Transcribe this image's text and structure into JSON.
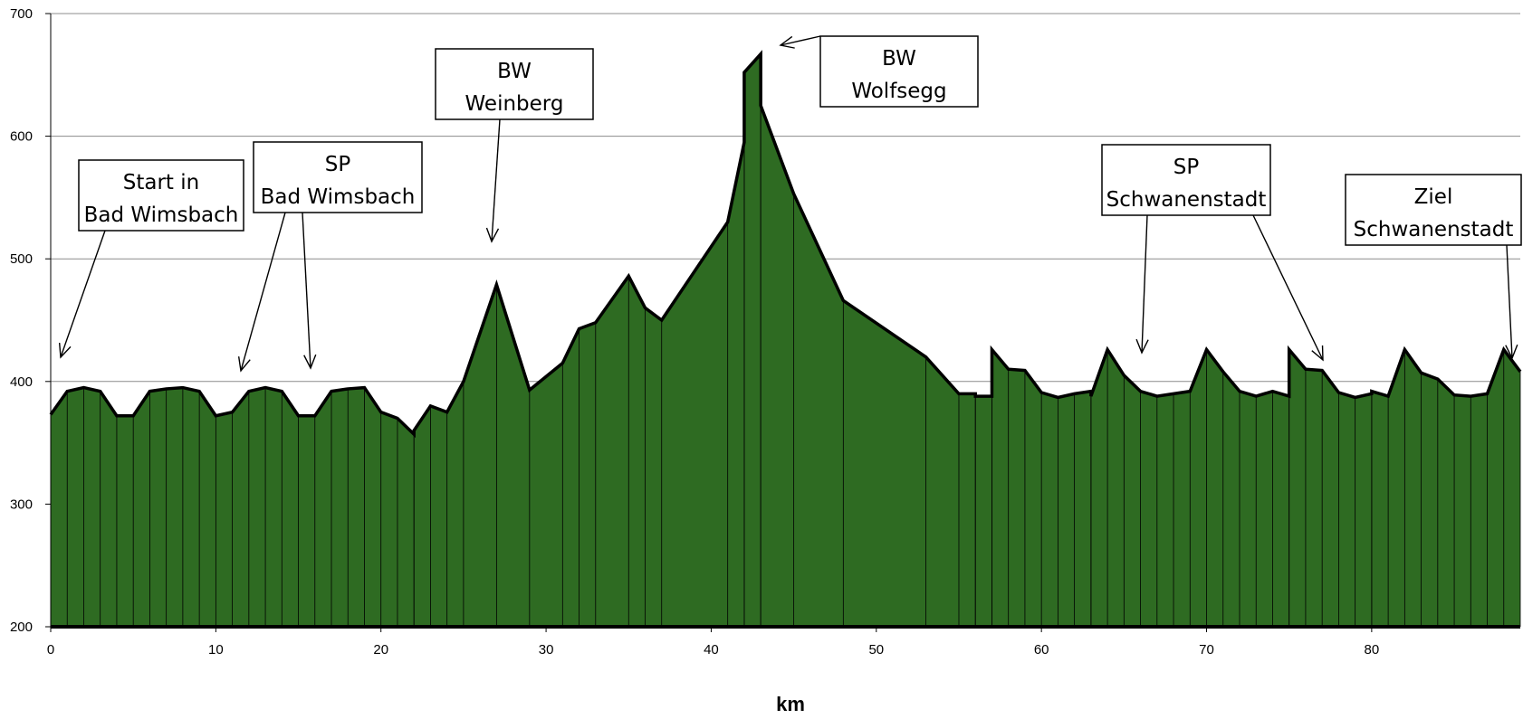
{
  "chart_data": {
    "type": "area",
    "title": "",
    "xlabel": "km",
    "ylabel": "",
    "xlim": [
      0,
      89
    ],
    "ylim": [
      200,
      700
    ],
    "x_ticks": [
      "0",
      "10",
      "20",
      "30",
      "40",
      "50",
      "60",
      "70",
      "80"
    ],
    "y_ticks": [
      "200",
      "300",
      "400",
      "500",
      "600",
      "700"
    ],
    "grid": "horizontal",
    "legend": "none",
    "fill_color": "#2e6b22",
    "line_color": "#000000",
    "series": [
      {
        "x": [
          0,
          1,
          2,
          3,
          4,
          5,
          6,
          7,
          8,
          9,
          10,
          11,
          12,
          13,
          14,
          15,
          16,
          17,
          18,
          19,
          20,
          21,
          22,
          22,
          23,
          24,
          25,
          27,
          29,
          31,
          32,
          33,
          35,
          36,
          37,
          41,
          42,
          42,
          43,
          43,
          45,
          48,
          53,
          55,
          56,
          56,
          57,
          57,
          58,
          59,
          60,
          61,
          62,
          63,
          63,
          64,
          65,
          66,
          67,
          68,
          69,
          70,
          71,
          72,
          73,
          74,
          75,
          75,
          76,
          77,
          78,
          79,
          80,
          80,
          81,
          82,
          83,
          84,
          85,
          86,
          87,
          88,
          89
        ],
        "y": [
          373,
          392,
          395,
          392,
          372,
          372,
          392,
          394,
          395,
          392,
          372,
          375,
          392,
          395,
          392,
          372,
          372,
          392,
          394,
          395,
          375,
          370,
          357,
          360,
          380,
          375,
          400,
          479,
          393,
          415,
          443,
          448,
          486,
          460,
          450,
          530,
          595,
          652,
          667,
          625,
          553,
          466,
          420,
          390,
          390,
          388,
          388,
          426,
          410,
          409,
          391,
          387,
          390,
          392,
          388,
          426,
          405,
          392,
          388,
          390,
          392,
          426,
          408,
          392,
          388,
          392,
          388,
          426,
          410,
          409,
          391,
          387,
          390,
          392,
          388,
          426,
          407,
          402,
          389,
          388,
          390,
          426,
          408
        ]
      }
    ],
    "annotations": [
      {
        "lines": [
          "Start in",
          "Bad Wimsbach"
        ]
      },
      {
        "lines": [
          "SP",
          "Bad Wimsbach"
        ]
      },
      {
        "lines": [
          "BW",
          "Weinberg"
        ]
      },
      {
        "lines": [
          "BW",
          "Wolfsegg"
        ]
      },
      {
        "lines": [
          "SP",
          "Schwanenstadt"
        ]
      },
      {
        "lines": [
          "Ziel",
          "Schwanenstadt"
        ]
      }
    ]
  }
}
